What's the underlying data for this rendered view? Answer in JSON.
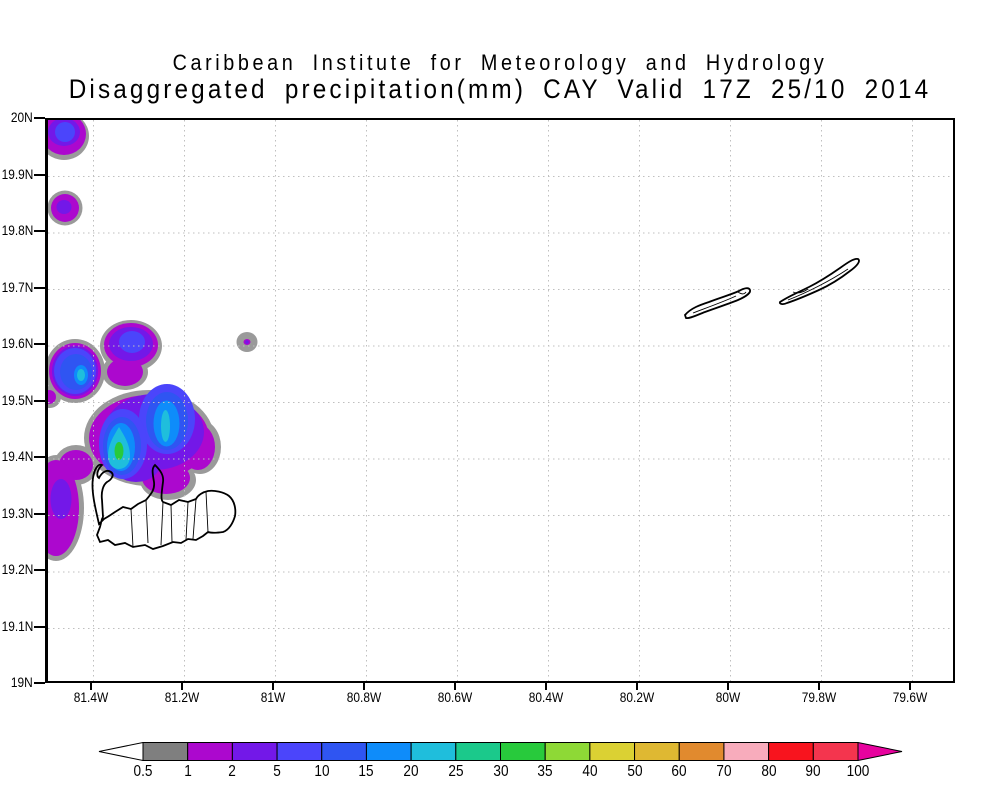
{
  "title": {
    "line1": "Caribbean Institute for Meteorology and Hydrology",
    "line2": "Disaggregated precipitation(mm) CAY Valid 17Z 25/10 2014"
  },
  "palette": {
    "rim": "#9A9A9A",
    "0.5": "#7F7F7F",
    "1": "#AC08CE",
    "2": "#7318E8",
    "5": "#4B45FB",
    "10": "#2F55F2",
    "15": "#0E8CFA",
    "20": "#1FBEDC",
    "25": "#1BC98B",
    "30": "#28CA3C",
    "35": "#8ED936",
    "40": "#DBD133",
    "50": "#DFB832",
    "60": "#E18A2E",
    "70": "#F8ACBC",
    "80": "#F8141E",
    "90": "#F4354E",
    "over": "#E7029E",
    "under": "#FFFFFF"
  },
  "chart_data": {
    "type": "heatmap",
    "title": "Caribbean Institute for Meteorology and Hydrology",
    "subtitle": "Disaggregated precipitation(mm) CAY Valid 17Z 25/10 2014",
    "variable": "Disaggregated precipitation (mm)",
    "station": "CAY",
    "valid_time": "17Z 25/10 2014",
    "x_axis": {
      "ticks": [
        "81.4W",
        "81.2W",
        "81W",
        "80.8W",
        "80.6W",
        "80.4W",
        "80.2W",
        "80W",
        "79.8W",
        "79.6W"
      ],
      "range_deg_w": [
        81.5,
        79.5
      ]
    },
    "y_axis": {
      "ticks": [
        "20N",
        "19.9N",
        "19.8N",
        "19.7N",
        "19.6N",
        "19.5N",
        "19.4N",
        "19.3N",
        "19.2N",
        "19.1N",
        "19N"
      ],
      "range_deg_n": [
        20,
        19
      ]
    },
    "grid": {
      "style": "dotted",
      "lat_step_deg": 0.1,
      "lon_step_deg": 0.2
    },
    "colorbar": {
      "units": "mm",
      "labels": [
        "0.5",
        "1",
        "2",
        "5",
        "10",
        "15",
        "20",
        "25",
        "30",
        "35",
        "40",
        "50",
        "60",
        "70",
        "80",
        "90",
        "100"
      ],
      "segment_levels": [
        "0.5",
        "1",
        "2",
        "5",
        "10",
        "15",
        "20",
        "25",
        "30",
        "35",
        "40",
        "50",
        "60",
        "70",
        "80",
        "90"
      ],
      "under_level": "under",
      "over_level": "over"
    },
    "islands": [
      {
        "name": "Grand Cayman"
      },
      {
        "name": "Little Cayman"
      },
      {
        "name": "Cayman Brac"
      }
    ],
    "precipitation_cells": [
      {
        "lat_n": 19.97,
        "lon_w": 81.46,
        "peak_mm": "5-10"
      },
      {
        "lat_n": 19.84,
        "lon_w": 81.46,
        "peak_mm": "2-5"
      },
      {
        "lat_n": 19.61,
        "lon_w": 81.32,
        "peak_mm": "5-10"
      },
      {
        "lat_n": 19.55,
        "lon_w": 81.44,
        "peak_mm": "15-20"
      },
      {
        "lat_n": 19.6,
        "lon_w": 81.06,
        "peak_mm": "1-2"
      },
      {
        "lat_n": 19.46,
        "lon_w": 81.25,
        "peak_mm": "20-25"
      },
      {
        "lat_n": 19.41,
        "lon_w": 81.33,
        "peak_mm": "30-35"
      },
      {
        "lat_n": 19.37,
        "lon_w": 81.47,
        "peak_mm": "2-5"
      },
      {
        "lat_n": 19.26,
        "lon_w": 81.45,
        "peak_mm": "1-2"
      }
    ]
  }
}
